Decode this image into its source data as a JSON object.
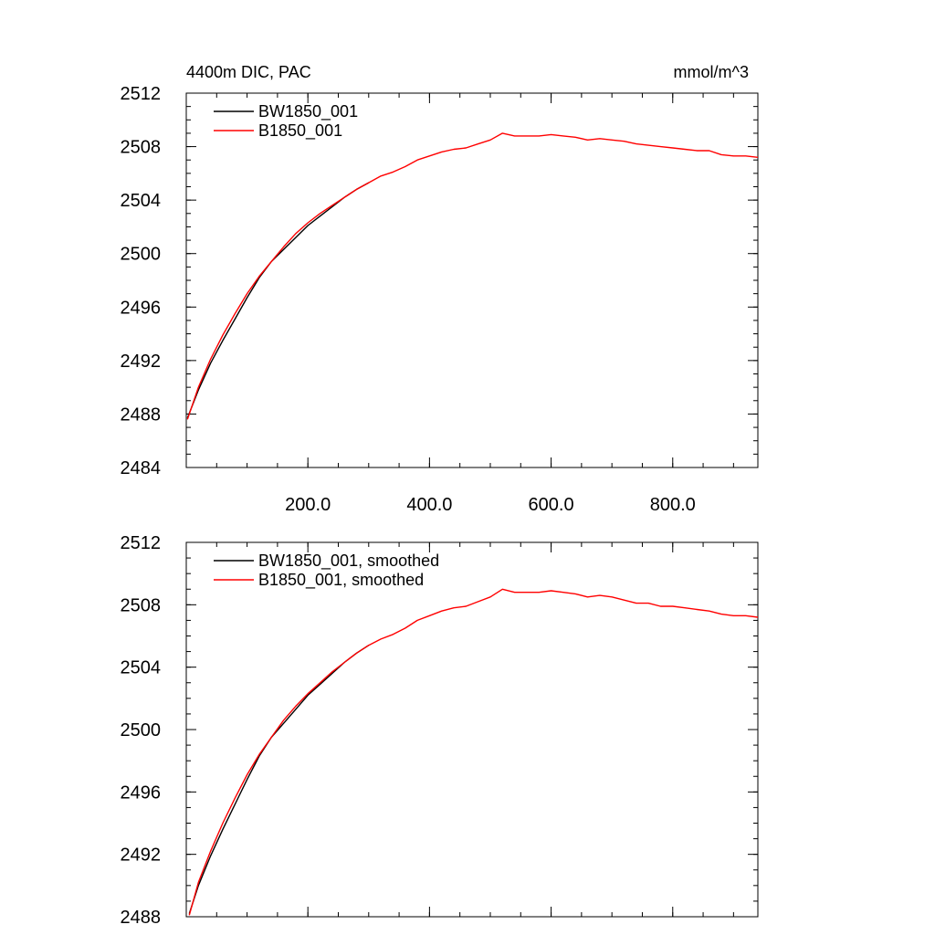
{
  "chart_data": [
    {
      "type": "line",
      "title": "4400m DIC, PAC",
      "units": "mmol/m^3",
      "xlim": [
        0,
        940
      ],
      "ylim": [
        2484,
        2512
      ],
      "yticks": [
        2484,
        2488,
        2492,
        2496,
        2500,
        2504,
        2508,
        2512
      ],
      "xticks": [
        200,
        400,
        600,
        800
      ],
      "xtick_labels": [
        "200.0",
        "400.0",
        "600.0",
        "800.0"
      ],
      "ytick_labels": [
        "2484",
        "2488",
        "2492",
        "2496",
        "2500",
        "2504",
        "2508",
        "2512"
      ],
      "legend_position": "top-left",
      "series": [
        {
          "name": "BW1850_001",
          "color": "#000000",
          "x": [
            2,
            20,
            40,
            60,
            80,
            100,
            120,
            140,
            160,
            180,
            200,
            220,
            240,
            260,
            280,
            300
          ],
          "y": [
            2487.7,
            2489.8,
            2491.8,
            2493.5,
            2495.1,
            2496.7,
            2498.2,
            2499.4,
            2500.3,
            2501.2,
            2502.1,
            2502.8,
            2503.5,
            2504.2,
            2504.8,
            2505.3
          ]
        },
        {
          "name": "B1850_001",
          "color": "#ff0000",
          "x": [
            2,
            20,
            40,
            60,
            80,
            100,
            120,
            140,
            160,
            180,
            200,
            220,
            240,
            260,
            280,
            300,
            320,
            340,
            360,
            380,
            400,
            420,
            440,
            460,
            480,
            500,
            520,
            540,
            560,
            580,
            600,
            620,
            640,
            660,
            680,
            700,
            720,
            740,
            760,
            780,
            800,
            820,
            840,
            860,
            880,
            900,
            920,
            940
          ],
          "y": [
            2487.6,
            2490.0,
            2492.1,
            2493.9,
            2495.5,
            2497.0,
            2498.3,
            2499.4,
            2500.5,
            2501.5,
            2502.3,
            2503.0,
            2503.6,
            2504.2,
            2504.8,
            2505.3,
            2505.8,
            2506.1,
            2506.5,
            2507.0,
            2507.3,
            2507.6,
            2507.8,
            2507.9,
            2508.2,
            2508.5,
            2509.0,
            2508.8,
            2508.8,
            2508.8,
            2508.9,
            2508.8,
            2508.7,
            2508.5,
            2508.6,
            2508.5,
            2508.4,
            2508.2,
            2508.1,
            2508.0,
            2507.9,
            2507.8,
            2507.7,
            2507.7,
            2507.4,
            2507.3,
            2507.3,
            2507.2
          ]
        }
      ]
    },
    {
      "type": "line",
      "xlim": [
        0,
        940
      ],
      "ylim": [
        2488,
        2512
      ],
      "yticks": [
        2488,
        2492,
        2496,
        2500,
        2504,
        2508,
        2512
      ],
      "xticks": [
        200,
        400,
        600,
        800
      ],
      "ytick_labels": [
        "2488",
        "2492",
        "2496",
        "2500",
        "2504",
        "2508",
        "2512"
      ],
      "legend_position": "top-left",
      "series": [
        {
          "name": "BW1850_001, smoothed",
          "color": "#000000",
          "x": [
            5,
            20,
            40,
            60,
            80,
            100,
            120,
            140,
            160,
            180,
            200,
            220,
            240,
            260,
            280,
            300
          ],
          "y": [
            2488.2,
            2490.0,
            2491.9,
            2493.6,
            2495.2,
            2496.8,
            2498.3,
            2499.5,
            2500.4,
            2501.3,
            2502.2,
            2502.9,
            2503.6,
            2504.3,
            2504.9,
            2505.4
          ]
        },
        {
          "name": "B1850_001, smoothed",
          "color": "#ff0000",
          "x": [
            5,
            20,
            40,
            60,
            80,
            100,
            120,
            140,
            160,
            180,
            200,
            220,
            240,
            260,
            280,
            300,
            320,
            340,
            360,
            380,
            400,
            420,
            440,
            460,
            480,
            500,
            520,
            540,
            560,
            580,
            600,
            620,
            640,
            660,
            680,
            700,
            720,
            740,
            760,
            780,
            800,
            820,
            840,
            860,
            880,
            900,
            920,
            940
          ],
          "y": [
            2488.1,
            2490.2,
            2492.2,
            2494.0,
            2495.6,
            2497.1,
            2498.4,
            2499.5,
            2500.6,
            2501.5,
            2502.3,
            2503.0,
            2503.7,
            2504.3,
            2504.9,
            2505.4,
            2505.8,
            2506.1,
            2506.5,
            2507.0,
            2507.3,
            2507.6,
            2507.8,
            2507.9,
            2508.2,
            2508.5,
            2509.0,
            2508.8,
            2508.8,
            2508.8,
            2508.9,
            2508.8,
            2508.7,
            2508.5,
            2508.6,
            2508.5,
            2508.3,
            2508.1,
            2508.1,
            2507.9,
            2507.9,
            2507.8,
            2507.7,
            2507.6,
            2507.4,
            2507.3,
            2507.3,
            2507.2
          ]
        }
      ]
    }
  ]
}
